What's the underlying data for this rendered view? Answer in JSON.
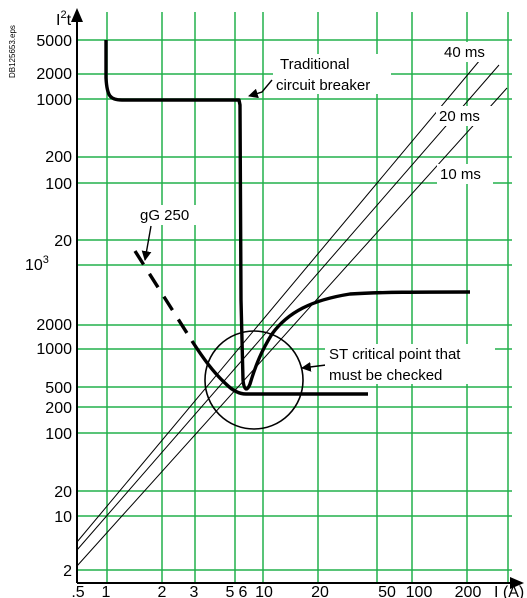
{
  "chart_data": {
    "type": "line",
    "side_label": "DB125653.eps",
    "ylabel_main": "I",
    "ylabel_sup": "2",
    "ylabel_tail": "t",
    "xlabel": "I (A)",
    "grid": true,
    "grid_color": "#22b04b",
    "line_color": "#000000",
    "x_ticks": [
      ".5",
      "1",
      "2",
      "3",
      "5",
      "6",
      "10",
      "20",
      "50",
      "100",
      "200"
    ],
    "y_ticks_upper": [
      "5000",
      "2000",
      "1000",
      "200",
      "100",
      "20"
    ],
    "y_tick_10e3_base": "10",
    "y_tick_10e3_exp": "3",
    "y_ticks_lower": [
      "2000",
      "1000",
      "500",
      "200",
      "100",
      "20",
      "10",
      "2"
    ],
    "diagonal_labels": [
      "40 ms",
      "20 ms",
      "10 ms"
    ],
    "annotations": {
      "breaker_line1": "Traditional",
      "breaker_line2": "circuit breaker",
      "fuse": "gG 250",
      "critical_line1": "ST critical point that",
      "critical_line2": "must be checked"
    },
    "series": [
      {
        "name": "Traditional circuit breaker"
      },
      {
        "name": "gG 250"
      }
    ]
  }
}
